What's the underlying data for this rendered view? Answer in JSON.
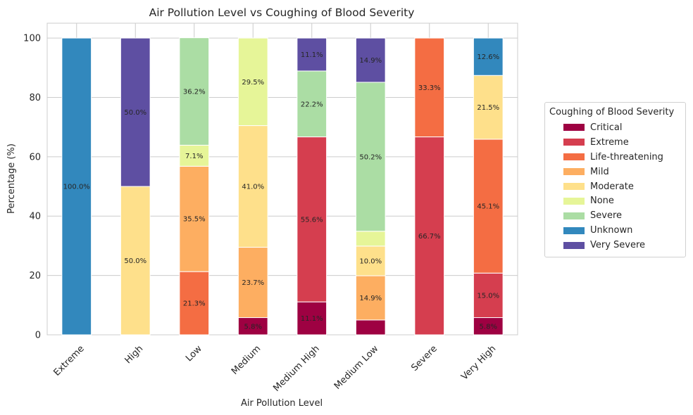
{
  "chart_data": {
    "type": "bar",
    "stacked": true,
    "title": "Air Pollution Level vs Coughing of Blood Severity",
    "xlabel": "Air Pollution Level",
    "ylabel": "Percentage (%)",
    "ylim": [
      0,
      105
    ],
    "yticks": [
      "0",
      "20",
      "40",
      "60",
      "80",
      "100"
    ],
    "grid": true,
    "legend_position": "right",
    "legend_title": "Coughing of Blood Severity",
    "categories": [
      "Extreme",
      "High",
      "Low",
      "Medium",
      "Medium High",
      "Medium Low",
      "Severe",
      "Very High"
    ],
    "series": [
      {
        "name": "Critical",
        "color": "#9e0142",
        "values": [
          0,
          0,
          0,
          5.8,
          11.1,
          5.0,
          0,
          5.8
        ],
        "labels": [
          "",
          "",
          "",
          "5.8%",
          "11.1%",
          "",
          "",
          "5.8%"
        ]
      },
      {
        "name": "Extreme",
        "color": "#d53e4f",
        "values": [
          0,
          0,
          0,
          0,
          55.6,
          0,
          66.7,
          15.0
        ],
        "labels": [
          "",
          "",
          "",
          "",
          "55.6%",
          "",
          "66.7%",
          "15.0%"
        ]
      },
      {
        "name": "Life-threatening",
        "color": "#f46d43",
        "values": [
          0,
          0,
          21.3,
          0,
          0,
          0,
          33.3,
          45.1
        ],
        "labels": [
          "",
          "",
          "21.3%",
          "",
          "",
          "",
          "33.3%",
          "45.1%"
        ]
      },
      {
        "name": "Mild",
        "color": "#fdae61",
        "values": [
          0,
          0,
          35.5,
          23.7,
          0,
          14.9,
          0,
          0
        ],
        "labels": [
          "",
          "",
          "35.5%",
          "23.7%",
          "",
          "14.9%",
          "",
          ""
        ]
      },
      {
        "name": "Moderate",
        "color": "#fee08b",
        "values": [
          0,
          50.0,
          0,
          41.0,
          0,
          10.0,
          0,
          21.5
        ],
        "labels": [
          "",
          "50.0%",
          "",
          "41.0%",
          "",
          "10.0%",
          "",
          "21.5%"
        ]
      },
      {
        "name": "None",
        "color": "#e6f598",
        "values": [
          0,
          0,
          7.1,
          29.5,
          0,
          5.0,
          0,
          0
        ],
        "labels": [
          "",
          "",
          "7.1%",
          "29.5%",
          "",
          "",
          "",
          ""
        ]
      },
      {
        "name": "Severe",
        "color": "#abdda4",
        "values": [
          0,
          0,
          36.2,
          0,
          22.2,
          50.2,
          0,
          0
        ],
        "labels": [
          "",
          "",
          "36.2%",
          "",
          "22.2%",
          "50.2%",
          "",
          ""
        ]
      },
      {
        "name": "Unknown",
        "color": "#3288bd",
        "values": [
          100.0,
          0,
          0,
          0,
          0,
          0,
          0,
          12.6
        ],
        "labels": [
          "100.0%",
          "",
          "",
          "",
          "",
          "",
          "",
          "12.6%"
        ]
      },
      {
        "name": "Very Severe",
        "color": "#5e4fa2",
        "values": [
          0,
          50.0,
          0,
          0,
          11.1,
          14.9,
          0,
          0
        ],
        "labels": [
          "",
          "50.0%",
          "",
          "",
          "11.1%",
          "14.9%",
          "",
          ""
        ]
      }
    ]
  }
}
